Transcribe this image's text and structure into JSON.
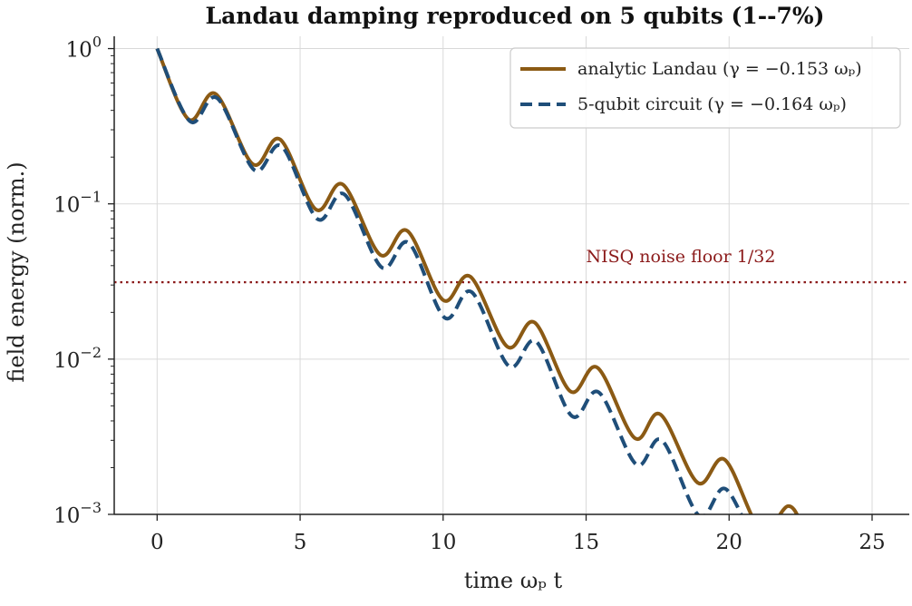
{
  "chart_data": {
    "type": "line",
    "title": "Landau damping reproduced on 5 qubits (1--7%)",
    "xlabel": "time  ωₚ t",
    "ylabel": "field energy (norm.)",
    "xlim": [
      -1.5,
      26.3
    ],
    "ylim": [
      0.001,
      1.2
    ],
    "yscale": "log",
    "xticks": [
      0,
      5,
      10,
      15,
      20,
      25
    ],
    "yticks": [
      {
        "value": 1,
        "base": "10",
        "exp": "0"
      },
      {
        "value": 0.1,
        "base": "10",
        "exp": "−1"
      },
      {
        "value": 0.01,
        "base": "10",
        "exp": "−2"
      },
      {
        "value": 0.001,
        "base": "10",
        "exp": "−3"
      }
    ],
    "grid": true,
    "legend_position": "top-right",
    "series": [
      {
        "name": "analytic Landau (γ = −0.153 ωₚ)",
        "color": "#8b5a14",
        "style": "solid",
        "points": [
          [
            0,
            1.0
          ],
          [
            1.1,
            0.35
          ],
          [
            2.05,
            0.51
          ],
          [
            3.35,
            0.18
          ],
          [
            4.3,
            0.26
          ],
          [
            5.55,
            0.092
          ],
          [
            6.5,
            0.133
          ],
          [
            7.8,
            0.047
          ],
          [
            8.75,
            0.067
          ],
          [
            10.0,
            0.024
          ],
          [
            10.95,
            0.034
          ],
          [
            12.25,
            0.012
          ],
          [
            13.2,
            0.0172
          ],
          [
            14.45,
            0.0062
          ],
          [
            15.4,
            0.0088
          ],
          [
            16.7,
            0.0031
          ],
          [
            17.6,
            0.0044
          ],
          [
            18.9,
            0.0016
          ],
          [
            19.85,
            0.00225
          ],
          [
            21.1,
            0.0008
          ],
          [
            22.05,
            0.00113
          ],
          [
            22.5,
            0.0009
          ]
        ]
      },
      {
        "name": "5-qubit circuit (γ = −0.164 ωₚ)",
        "color": "#1f4e79",
        "style": "dashed",
        "points": [
          [
            0,
            1.0
          ],
          [
            1.15,
            0.34
          ],
          [
            2.1,
            0.48
          ],
          [
            3.4,
            0.165
          ],
          [
            4.35,
            0.235
          ],
          [
            5.6,
            0.08
          ],
          [
            6.55,
            0.115
          ],
          [
            7.85,
            0.039
          ],
          [
            8.8,
            0.056
          ],
          [
            10.05,
            0.0185
          ],
          [
            11.0,
            0.027
          ],
          [
            12.3,
            0.009
          ],
          [
            13.25,
            0.013
          ],
          [
            14.5,
            0.0043
          ],
          [
            15.45,
            0.0061
          ],
          [
            16.75,
            0.0021
          ],
          [
            17.65,
            0.003
          ],
          [
            18.95,
            0.00098
          ],
          [
            19.9,
            0.00145
          ],
          [
            21.1,
            0.0005
          ]
        ]
      }
    ],
    "annotations": [
      {
        "type": "hline",
        "y": 0.03125,
        "color": "#8b1a1a",
        "style": "dotted",
        "label": "NISQ noise floor 1/32",
        "label_x": 15
      }
    ]
  }
}
